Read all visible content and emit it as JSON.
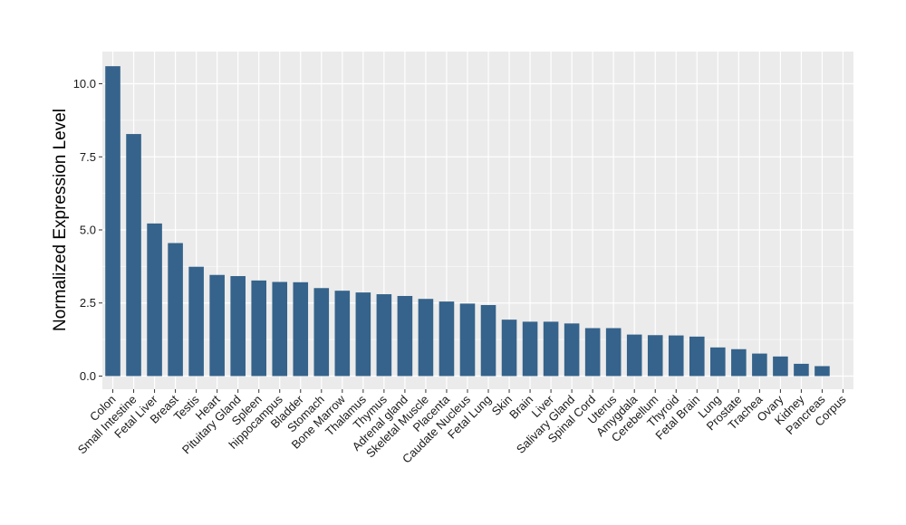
{
  "chart_data": {
    "type": "bar",
    "title": "",
    "xlabel": "",
    "ylabel": "Normalized Expression Level",
    "ylim": [
      -0.45,
      11.1
    ],
    "yticks": [
      0.0,
      2.5,
      5.0,
      7.5,
      10.0
    ],
    "ytick_labels": [
      "0.0",
      "2.5",
      "5.0",
      "7.5",
      "10.0"
    ],
    "grid": true,
    "legend": "none",
    "bar_color": "#35638b",
    "panel_background": "#ebebeb",
    "grid_color": "#ffffff",
    "categories": [
      "Colon",
      "Small Intestine",
      "Fetal Liver",
      "Breast",
      "Testis",
      "Heart",
      "Pituitary Gland",
      "Spleen",
      "hippocampus",
      "Bladder",
      "Stomach",
      "Bone Marrow",
      "Thalamus",
      "Thymus",
      "Adrenal gland",
      "Skeletal Muscle",
      "Placenta",
      "Caudate Nucleus",
      "Fetal Lung",
      "Skin",
      "Brain",
      "Liver",
      "Salivary Gland",
      "Spinal Cord",
      "Uterus",
      "Amygdala",
      "Cerebellum",
      "Thyroid",
      "Fetal Brain",
      "Lung",
      "Prostate",
      "Trachea",
      "Ovary",
      "Kidney",
      "Pancreas",
      "Corpus"
    ],
    "values": [
      10.6,
      8.28,
      5.22,
      4.55,
      3.74,
      3.46,
      3.42,
      3.27,
      3.22,
      3.21,
      3.01,
      2.92,
      2.86,
      2.8,
      2.74,
      2.64,
      2.55,
      2.48,
      2.43,
      1.93,
      1.86,
      1.86,
      1.8,
      1.64,
      1.64,
      1.42,
      1.4,
      1.39,
      1.35,
      0.98,
      0.92,
      0.77,
      0.67,
      0.42,
      0.34,
      0.0
    ]
  }
}
